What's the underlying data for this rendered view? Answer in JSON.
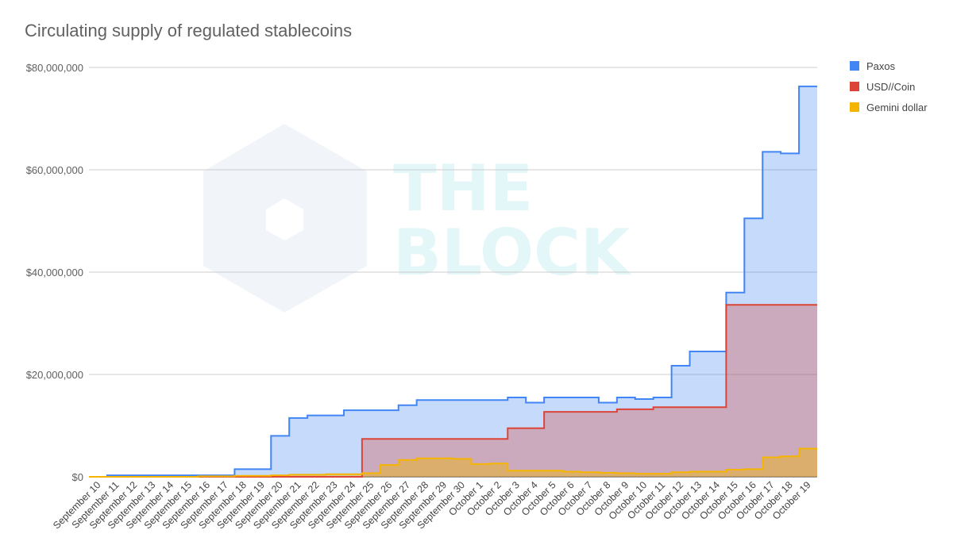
{
  "title": "Circulating supply of regulated stablecoins",
  "watermark": {
    "line1": "THE",
    "line2": "BLOCK"
  },
  "legend": [
    {
      "label": "Paxos",
      "color": "#4285f4"
    },
    {
      "label": "USD//Coin",
      "color": "#db4437"
    },
    {
      "label": "Gemini dollar",
      "color": "#f4b400"
    }
  ],
  "chart_data": {
    "type": "area",
    "title": "Circulating supply of regulated stablecoins",
    "xlabel": "",
    "ylabel": "",
    "ylim": [
      0,
      80000000
    ],
    "yticks": [
      0,
      20000000,
      40000000,
      60000000,
      80000000
    ],
    "ytick_labels": [
      "$0",
      "$20,000,000",
      "$40,000,000",
      "$60,000,000",
      "$80,000,000"
    ],
    "grid": true,
    "legend_position": "right",
    "step": true,
    "categories": [
      "September 10",
      "September 11",
      "September 12",
      "September 13",
      "September 14",
      "September 15",
      "September 16",
      "September 17",
      "September 18",
      "September 19",
      "September 20",
      "September 21",
      "September 22",
      "September 23",
      "September 24",
      "September 25",
      "September 26",
      "September 27",
      "September 28",
      "September 29",
      "September 30",
      "October 1",
      "October 2",
      "October 3",
      "October 4",
      "October 5",
      "October 6",
      "October 7",
      "October 8",
      "October 9",
      "October 10",
      "October 11",
      "October 12",
      "October 13",
      "October 14",
      "October 15",
      "October 16",
      "October 17",
      "October 18",
      "October 19"
    ],
    "series": [
      {
        "name": "Paxos",
        "color": "#4285f4",
        "values": [
          0,
          300000,
          300000,
          300000,
          300000,
          300000,
          300000,
          300000,
          1500000,
          1500000,
          8000000,
          11500000,
          12000000,
          12000000,
          13000000,
          13000000,
          13000000,
          14000000,
          15000000,
          15000000,
          15000000,
          15000000,
          15000000,
          15500000,
          14500000,
          15500000,
          15500000,
          15500000,
          14500000,
          15500000,
          15200000,
          15500000,
          21700000,
          24500000,
          24500000,
          36000000,
          50500000,
          63500000,
          63200000,
          76300000
        ]
      },
      {
        "name": "USD//Coin",
        "color": "#db4437",
        "values": [
          0,
          0,
          0,
          0,
          0,
          0,
          0,
          0,
          0,
          0,
          0,
          0,
          0,
          0,
          0,
          7400000,
          7400000,
          7400000,
          7400000,
          7400000,
          7400000,
          7400000,
          7400000,
          9500000,
          9500000,
          12700000,
          12700000,
          12700000,
          12700000,
          13200000,
          13200000,
          13600000,
          13600000,
          13600000,
          13600000,
          33600000,
          33600000,
          33600000,
          33600000,
          33600000
        ]
      },
      {
        "name": "Gemini dollar",
        "color": "#f4b400",
        "values": [
          0,
          0,
          0,
          0,
          0,
          0,
          100000,
          100000,
          200000,
          200000,
          300000,
          400000,
          400000,
          500000,
          500000,
          700000,
          2300000,
          3300000,
          3600000,
          3600000,
          3500000,
          2500000,
          2600000,
          1200000,
          1200000,
          1200000,
          1000000,
          900000,
          800000,
          700000,
          600000,
          600000,
          900000,
          1000000,
          1000000,
          1400000,
          1500000,
          3800000,
          4000000,
          5500000
        ]
      }
    ]
  }
}
